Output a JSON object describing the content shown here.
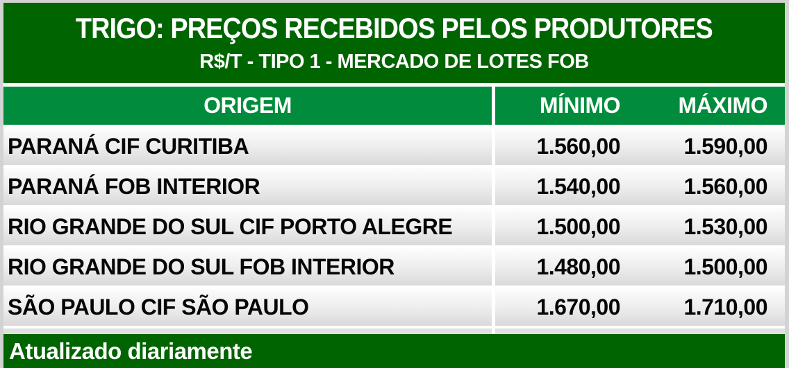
{
  "header": {
    "title": "TRIGO: PREÇOS RECEBIDOS PELOS PRODUTORES",
    "subtitle": "R$/T - TIPO 1 - MERCADO DE LOTES FOB"
  },
  "table": {
    "columns": {
      "origin": "ORIGEM",
      "min": "MÍNIMO",
      "max": "MÁXIMO"
    },
    "rows": [
      {
        "origin": "PARANÁ CIF CURITIBA",
        "min": "1.560,00",
        "max": "1.590,00"
      },
      {
        "origin": "PARANÁ FOB INTERIOR",
        "min": "1.540,00",
        "max": "1.560,00"
      },
      {
        "origin": "RIO GRANDE DO SUL CIF PORTO ALEGRE",
        "min": "1.500,00",
        "max": "1.530,00"
      },
      {
        "origin": "RIO GRANDE DO SUL FOB INTERIOR",
        "min": "1.480,00",
        "max": "1.500,00"
      },
      {
        "origin": "SÃO PAULO CIF SÃO PAULO",
        "min": "1.670,00",
        "max": "1.710,00"
      }
    ]
  },
  "footer": {
    "note": "Atualizado diariamente"
  },
  "colors": {
    "dark_green": "#006400",
    "header_green": "#008c3c",
    "outer_border_gray": "#d3d3d3",
    "row_gradient_top": "#fdfdfd",
    "row_gradient_bottom": "#d9d9d9",
    "header_text": "#ffffff",
    "row_text": "#060606"
  },
  "chart_data": {
    "type": "table",
    "title": "TRIGO: PREÇOS RECEBIDOS PELOS PRODUTORES",
    "subtitle": "R$/T - TIPO 1 - MERCADO DE LOTES FOB",
    "unit": "R$/T",
    "columns": [
      "ORIGEM",
      "MÍNIMO",
      "MÁXIMO"
    ],
    "rows": [
      [
        "PARANÁ CIF CURITIBA",
        1560.0,
        1590.0
      ],
      [
        "PARANÁ FOB INTERIOR",
        1540.0,
        1560.0
      ],
      [
        "RIO GRANDE DO SUL CIF PORTO ALEGRE",
        1500.0,
        1530.0
      ],
      [
        "RIO GRANDE DO SUL FOB INTERIOR",
        1480.0,
        1500.0
      ],
      [
        "SÃO PAULO CIF SÃO PAULO",
        1670.0,
        1710.0
      ]
    ],
    "note": "Atualizado diariamente"
  }
}
